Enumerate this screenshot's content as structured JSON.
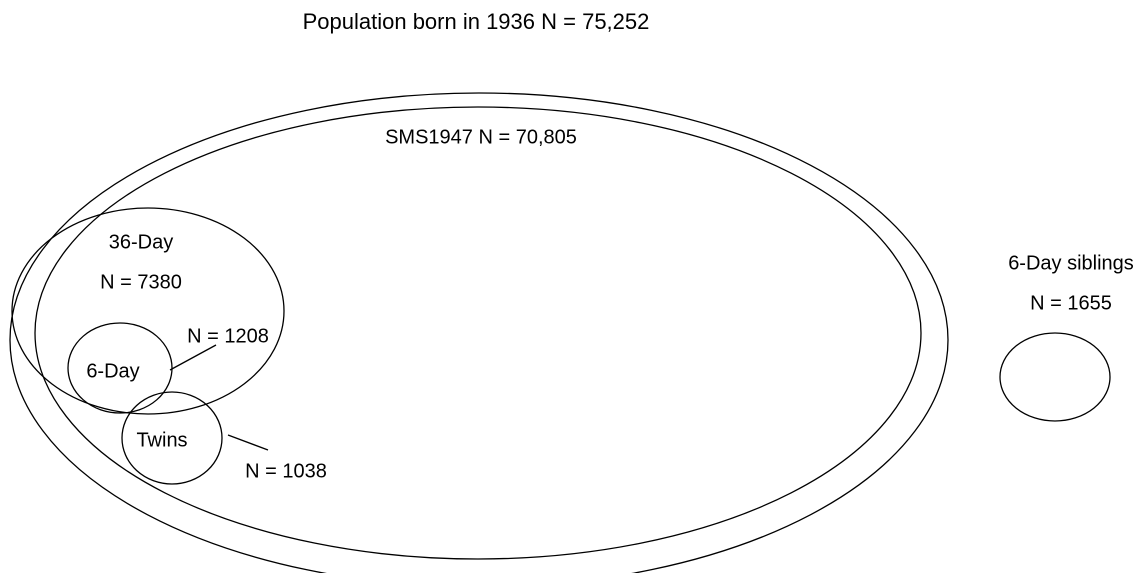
{
  "title": "Population born in 1936 N = 75,252",
  "nodes": [
    {
      "label": "SMS1947 N = 70,805"
    },
    {
      "label": "36-Day",
      "count": "N = 7380"
    },
    {
      "label": "6-Day",
      "count": "N = 1208"
    },
    {
      "label": "Twins",
      "count": "N = 1038"
    },
    {
      "label": "6-Day siblings",
      "count": "N = 1655"
    }
  ]
}
